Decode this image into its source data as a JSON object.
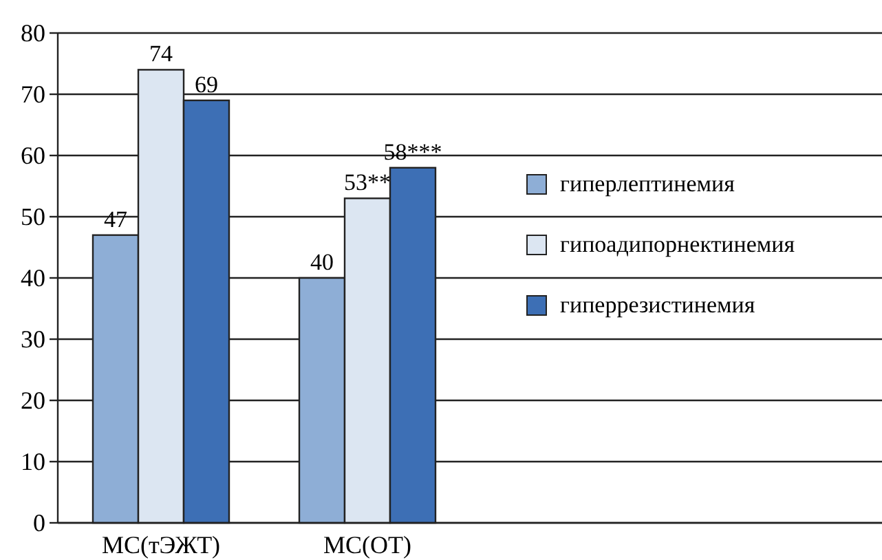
{
  "chart_data": {
    "type": "bar",
    "categories": [
      "МС(тЭЖТ)",
      "МС(ОТ)"
    ],
    "series": [
      {
        "name": "гиперлептинемия",
        "color": "#8eaed6",
        "values": [
          47,
          40
        ],
        "value_labels": [
          "47",
          "40"
        ]
      },
      {
        "name": "гипоадипорнектинемия",
        "color": "#dce6f2",
        "values": [
          74,
          53
        ],
        "value_labels": [
          "74",
          "53**"
        ]
      },
      {
        "name": "гиперрезистинемия",
        "color": "#3d6fb5",
        "values": [
          69,
          58
        ],
        "value_labels": [
          "69",
          "58***"
        ]
      }
    ],
    "ylim": [
      0,
      80
    ],
    "yticks": [
      0,
      10,
      20,
      30,
      40,
      50,
      60,
      70,
      80
    ],
    "grid": "y",
    "legend": "right"
  }
}
